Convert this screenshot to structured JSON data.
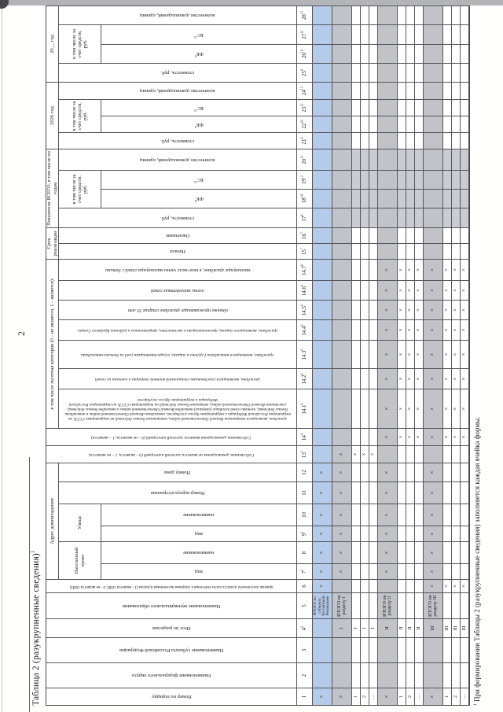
{
  "page": {
    "number": "2",
    "title": {
      "text": "Таблица 2 (разукрупненные сведения)",
      "sup": "1"
    },
    "footnote": {
      "sup": "1",
      "text": " При формировании Таблицы 2 (разукрупненные сведения) заполняется каждая ячейка формы."
    }
  },
  "colors": {
    "row_highlight_blue": "#b6cbe9",
    "row_total_gray": "#c1c3c8",
    "column_shade_gray": "#cbccd1",
    "grid_line": "#55565a"
  },
  "table": {
    "header_cells": [
      {
        "label": "Номер по порядку",
        "col": 1,
        "row": 1,
        "rowspan": 3,
        "vert": 1
      },
      {
        "label": "Наименование федерального округа",
        "col": 2,
        "row": 1,
        "rowspan": 3,
        "vert": 1
      },
      {
        "label": "Наименование субъекта Российской Федерации",
        "col": 3,
        "row": 1,
        "rowspan": 3,
        "vert": 1
      },
      {
        "label": "Итог по разделам",
        "col": 4,
        "row": 1,
        "rowspan": 3,
        "vert": 1
      },
      {
        "label": "Наименование муниципального образования",
        "col": 5,
        "row": 1,
        "rowspan": 3,
        "vert": 1
      },
      {
        "label": "признак населенного пункта в части отнесения к опорным населенным пунктам (1 - является ОНП, 0 - не является ОНП)",
        "col": 6,
        "row": 1,
        "rowspan": 3,
        "vert": 1,
        "fs": 5
      },
      {
        "label": "Адрес домовладения",
        "col": 7,
        "colspan": 6,
        "row": 1,
        "fs": 6.6
      },
      {
        "label": "Населенный пункт",
        "col": 7,
        "colspan": 2,
        "row": 2,
        "fs": 6.4
      },
      {
        "label": "Улица",
        "col": 9,
        "colspan": 2,
        "row": 2,
        "fs": 6.4
      },
      {
        "label": "вид",
        "col": 7,
        "row": 3,
        "vert": 1
      },
      {
        "label": "наименование",
        "col": 8,
        "row": 3,
        "vert": 1
      },
      {
        "label": "вид",
        "col": 9,
        "row": 3,
        "vert": 1
      },
      {
        "label": "наименование",
        "col": 10,
        "row": 3,
        "vert": 1
      },
      {
        "label": "Номер корпуса/строения",
        "col": 11,
        "row": 2,
        "rowspan": 2,
        "vert": 1
      },
      {
        "label": "Номер дома",
        "col": 12,
        "row": 2,
        "rowspan": 2,
        "vert": 1
      },
      {
        "label": "Собственник домовладения не является льготной категорией (0 – является, 1 – не является)",
        "col": 13,
        "row": 1,
        "rowspan": 3,
        "vert": 1,
        "fs": 5.4
      },
      {
        "label": "Собственник домовладения является льготной категорией (0 – не является, 1 – является)",
        "col": 14,
        "row": 1,
        "rowspan": 3,
        "vert": 1,
        "fs": 5.4
      },
      {
        "label": "в том числе льготная категория (0 – не является, 1 – является):",
        "col": 15,
        "colspan": 7,
        "row": 1,
        "fs": 6.3
      },
      {
        "label": "граждане, являющиеся ветеранами Великой Отечественной войны, ветеранами боевых действий на территориях СССР, на территории Российской Федерации и территориях других государств, инвалидами Великой Отечественной войны и инвалидами боевых действий, членами семей погибших (умерших) инвалидов Великой Отечественной войны и инвалидов боевых действий, участников Великой Отечественной войны, ветеранов боевых действий на территориях СССР, на территории Российской Федерации и территориях других государств",
        "col": 15,
        "row": 2,
        "rowspan": 2,
        "vert": 1,
        "italic": 1,
        "fs": 5.2
      },
      {
        "label": "граждане, являющиеся участниками специальной военной операции и членами их семей",
        "col": 16,
        "row": 2,
        "rowspan": 2,
        "vert": 1,
        "italic": 1,
        "fs": 5.6
      },
      {
        "label": "граждане, являющиеся инвалидами I группы и лицами, осуществляющими уход за детьми-инвалидами",
        "col": 17,
        "row": 2,
        "rowspan": 2,
        "vert": 1,
        "italic": 1,
        "fs": 5.6
      },
      {
        "label": "граждане, являющиеся лицами, проживающими в местностях, приравненных к районам Крайнего Севера",
        "col": 18,
        "row": 2,
        "rowspan": 2,
        "vert": 1,
        "italic": 1,
        "fs": 5.6
      },
      {
        "label": "одиноко проживающие граждане старше 55 лет",
        "col": 19,
        "row": 2,
        "rowspan": 2,
        "vert": 1,
        "italic": 1,
        "fs": 6
      },
      {
        "label": "члены многодетных семей",
        "col": 20,
        "row": 2,
        "rowspan": 2,
        "vert": 1,
        "italic": 1,
        "fs": 6
      },
      {
        "label": "малоимущие граждане, в том числе члены малоимущих семей с детьми",
        "col": 21,
        "row": 2,
        "rowspan": 2,
        "vert": 1,
        "italic": 1,
        "fs": 6
      },
      {
        "label": "Срок реализации",
        "col": 22,
        "colspan": 2,
        "row": 1,
        "fs": 6.6
      },
      {
        "label": "Начало",
        "col": 22,
        "row": 2,
        "rowspan": 2,
        "vert": 1
      },
      {
        "label": "Окончание",
        "col": 23,
        "row": 2,
        "rowspan": 2,
        "vert": 1
      },
      {
        "label": "Показатели ВСЕГО, в том числе по годам",
        "col": 24,
        "colspan": 4,
        "row": 1,
        "fs": 6.3
      },
      {
        "label": "стоимость, руб.",
        "col": 24,
        "row": 2,
        "rowspan": 2,
        "vert": 1
      },
      {
        "label": "в том числе за счет средств, руб.",
        "col": 25,
        "colspan": 2,
        "row": 2,
        "fs": 6.3
      },
      {
        "label": "ФБ",
        "sup": "9",
        "col": 25,
        "row": 3,
        "vert": 1
      },
      {
        "label": "БС",
        "sup": "11",
        "col": 26,
        "row": 3,
        "vert": 1
      },
      {
        "label": "количество домовладений, единиц",
        "col": 27,
        "row": 2,
        "rowspan": 2,
        "vert": 1
      },
      {
        "label": "2026 год",
        "col": 28,
        "colspan": 4,
        "row": 1,
        "fs": 6.6
      },
      {
        "label": "стоимость, руб.",
        "col": 28,
        "row": 2,
        "rowspan": 2,
        "vert": 1
      },
      {
        "label": "в том числе за счет средств, руб.",
        "col": 29,
        "colspan": 2,
        "row": 2,
        "fs": 6.3
      },
      {
        "label": "ФБ",
        "sup": "9",
        "col": 29,
        "row": 3,
        "vert": 1
      },
      {
        "label": "БС",
        "sup": "11",
        "col": 30,
        "row": 3,
        "vert": 1
      },
      {
        "label": "количество домовладений, единиц",
        "col": 31,
        "row": 2,
        "rowspan": 2,
        "vert": 1
      },
      {
        "label": "20__ год",
        "col": 32,
        "colspan": 4,
        "row": 1,
        "fs": 6.6
      },
      {
        "label": "стоимость, руб.",
        "col": 32,
        "row": 2,
        "rowspan": 2,
        "vert": 1
      },
      {
        "label": "в том числе за счет средств, руб.",
        "col": 33,
        "colspan": 2,
        "row": 2,
        "fs": 6.3
      },
      {
        "label": "ФБ",
        "sup": "9",
        "col": 33,
        "row": 3,
        "vert": 1
      },
      {
        "label": "БС",
        "sup": "11",
        "col": 34,
        "row": 3,
        "vert": 1
      },
      {
        "label": "количество домовладений, единиц",
        "col": 35,
        "row": 2,
        "rowspan": 2,
        "vert": 1
      }
    ],
    "number_row": [
      {
        "t": "1",
        "s": ""
      },
      {
        "t": "2",
        "s": ""
      },
      {
        "t": "3",
        "s": ""
      },
      {
        "t": "4",
        "s": "2"
      },
      {
        "t": "5",
        "s": ""
      },
      {
        "t": "6",
        "s": ""
      },
      {
        "t": "7",
        "s": "2"
      },
      {
        "t": "8",
        "s": ""
      },
      {
        "t": "9",
        "s": "2"
      },
      {
        "t": "10",
        "s": ""
      },
      {
        "t": "11",
        "s": ""
      },
      {
        "t": "12",
        "s": ""
      },
      {
        "t": "13",
        "s": "3"
      },
      {
        "t": "14",
        "s": "4"
      },
      {
        "t": "14.1",
        "s": "6"
      },
      {
        "t": "14.2",
        "s": "6"
      },
      {
        "t": "14.3",
        "s": "6"
      },
      {
        "t": "14.4",
        "s": "6"
      },
      {
        "t": "14.5",
        "s": "6"
      },
      {
        "t": "14.6",
        "s": "6"
      },
      {
        "t": "14.7",
        "s": "6"
      },
      {
        "t": "15",
        "s": "7"
      },
      {
        "t": "16",
        "s": "7"
      },
      {
        "t": "17",
        "s": "8"
      },
      {
        "t": "18",
        "s": "10"
      },
      {
        "t": "19",
        "s": "12"
      },
      {
        "t": "20",
        "s": "13"
      },
      {
        "t": "21",
        "s": "8"
      },
      {
        "t": "22",
        "s": "10"
      },
      {
        "t": "23",
        "s": "12"
      },
      {
        "t": "24",
        "s": "13"
      },
      {
        "t": "25",
        "s": "8"
      },
      {
        "t": "26",
        "s": "10"
      },
      {
        "t": "27",
        "s": "12"
      },
      {
        "t": "28",
        "s": "13"
      }
    ],
    "data_rows": [
      {
        "kind": "blue",
        "c1": "×",
        "c4": "",
        "c5": "ИТОГО по субъекту Российской Федерации",
        "x": [
          6,
          7,
          8,
          9,
          10,
          11,
          12
        ]
      },
      {
        "kind": "gray",
        "c1": "×",
        "c4": "I",
        "c5": "ИТОГО по разделу I",
        "x": [
          7,
          8,
          9,
          10,
          11,
          12,
          13
        ]
      },
      {
        "kind": "item",
        "c1": "1",
        "c4": "I",
        "c5": "",
        "x": [
          13
        ]
      },
      {
        "kind": "item",
        "c1": "2",
        "c4": "I",
        "c5": "",
        "x": [
          13
        ]
      },
      {
        "kind": "item",
        "c1": "…",
        "c4": "I",
        "c5": "",
        "x": [
          13
        ]
      },
      {
        "kind": "gray",
        "c1": "×",
        "c4": "II",
        "c5": "ИТОГО по разделу II",
        "x": [
          7,
          8,
          9,
          10,
          11,
          12,
          14,
          15,
          16,
          17,
          18,
          19,
          20,
          21
        ]
      },
      {
        "kind": "item",
        "c1": "1",
        "c4": "II",
        "c5": "",
        "x": [
          14,
          15,
          16,
          17,
          18,
          19,
          20,
          21
        ]
      },
      {
        "kind": "item",
        "c1": "2",
        "c4": "II",
        "c5": "",
        "x": [
          14,
          15,
          16,
          17,
          18,
          19,
          20,
          21
        ]
      },
      {
        "kind": "item",
        "c1": "…",
        "c4": "II",
        "c5": "",
        "x": [
          14,
          15,
          16,
          17,
          18,
          19,
          20,
          21
        ]
      },
      {
        "kind": "gray",
        "c1": "×",
        "c4": "III",
        "c5": "ИТОГО по разделу III",
        "x": [
          6,
          7,
          8,
          9,
          10,
          11,
          12,
          14,
          15,
          16,
          17,
          18,
          19,
          20,
          21
        ]
      },
      {
        "kind": "item",
        "c1": "1",
        "c4": "III",
        "c5": "",
        "x": [
          6,
          14,
          15,
          16,
          17,
          18,
          19,
          20,
          21
        ]
      },
      {
        "kind": "item",
        "c1": "2",
        "c4": "III",
        "c5": "",
        "x": [
          6,
          14,
          15,
          16,
          17,
          18,
          19,
          20,
          21
        ]
      },
      {
        "kind": "item",
        "c1": "…",
        "c4": "III",
        "c5": "",
        "x": [
          6,
          14,
          15,
          16,
          17,
          18,
          19,
          20,
          21
        ]
      }
    ]
  }
}
